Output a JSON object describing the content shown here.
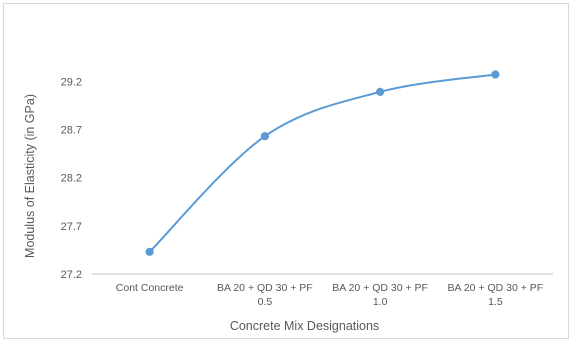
{
  "chart_data": {
    "type": "line",
    "title": "",
    "xlabel": "Concrete Mix Designations",
    "ylabel": "Modulus of Elasticity (in GPa)",
    "categories": [
      [
        "Cont Concrete"
      ],
      [
        "BA 20 + QD 30 + PF",
        "0.5"
      ],
      [
        "BA 20 + QD 30 + PF",
        "1.0"
      ],
      [
        "BA 20 + QD 30 + PF",
        "1.5"
      ]
    ],
    "series": [
      {
        "values": [
          27.43,
          28.63,
          29.09,
          29.27
        ]
      }
    ],
    "ylim": [
      27.2,
      29.4
    ],
    "yticks": [
      "27.2",
      "27.7",
      "28.2",
      "28.7",
      "29.2"
    ],
    "ytick_values": [
      27.2,
      27.7,
      28.2,
      28.7,
      29.2
    ],
    "smooth": true,
    "markers": true,
    "grid": false,
    "legend": "none",
    "colors": {
      "line": "#5b9bd5",
      "axis": "#bfbfbf",
      "text": "#595959"
    }
  }
}
